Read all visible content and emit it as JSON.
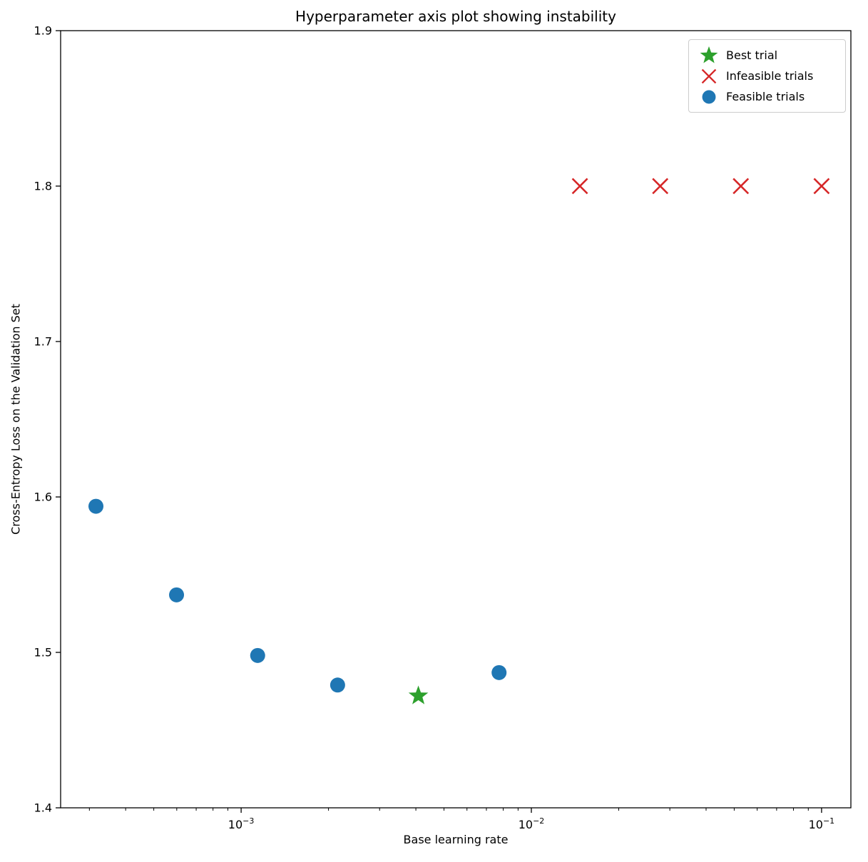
{
  "chart_data": {
    "type": "scatter",
    "title": "Hyperparameter axis plot showing instability",
    "xlabel": "Base learning rate",
    "ylabel": "Cross-Entropy Loss on the Validation Set",
    "x_scale": "log",
    "xlim_log10": [
      -3.622,
      -0.899
    ],
    "ylim": [
      1.4,
      1.9
    ],
    "x_major_ticks": [
      0.001,
      0.01,
      0.1
    ],
    "y_ticks": [
      1.4,
      1.5,
      1.6,
      1.7,
      1.8,
      1.9
    ],
    "grid": false,
    "legend_position": "upper right",
    "series": [
      {
        "name": "Best trial",
        "marker": "star",
        "color": "#2ca02c",
        "points": [
          {
            "x": 0.00408,
            "y": 1.472
          }
        ]
      },
      {
        "name": "Infeasible trials",
        "marker": "x",
        "color": "#d62728",
        "points": [
          {
            "x": 0.0147,
            "y": 1.8
          },
          {
            "x": 0.0278,
            "y": 1.8
          },
          {
            "x": 0.0527,
            "y": 1.8
          },
          {
            "x": 0.1,
            "y": 1.8
          }
        ]
      },
      {
        "name": "Feasible trials",
        "marker": "circle",
        "color": "#1f77b4",
        "points": [
          {
            "x": 0.000316,
            "y": 1.594
          },
          {
            "x": 0.000599,
            "y": 1.537
          },
          {
            "x": 0.00114,
            "y": 1.498
          },
          {
            "x": 0.00215,
            "y": 1.479
          },
          {
            "x": 0.00774,
            "y": 1.487
          }
        ]
      }
    ]
  }
}
